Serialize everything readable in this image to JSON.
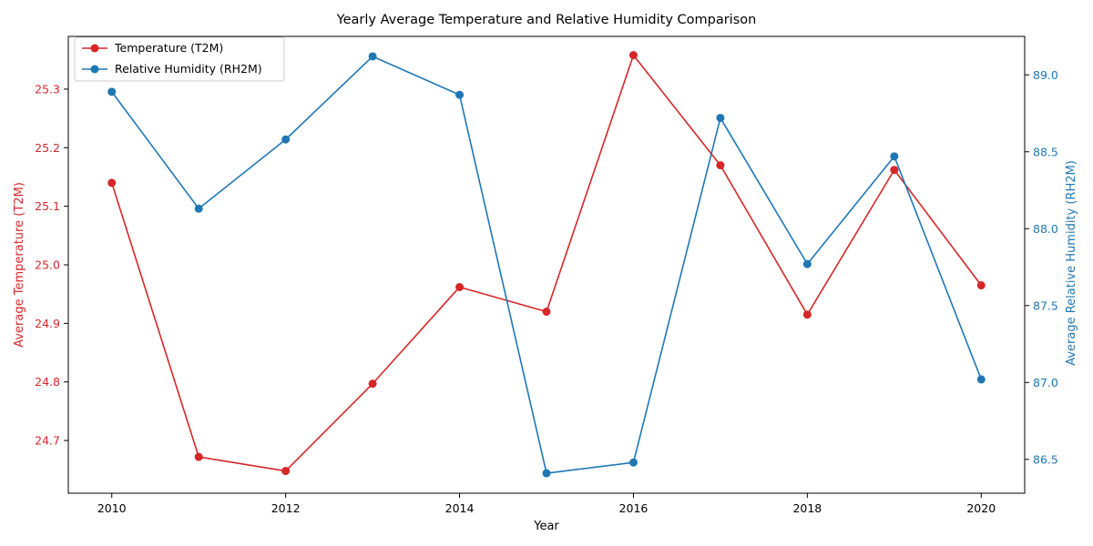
{
  "chart_data": {
    "type": "line",
    "title": "Yearly Average Temperature and Relative Humidity Comparison",
    "xlabel": "Year",
    "ylabel_left": "Average Temperature (T2M)",
    "ylabel_right": "Average Relative Humidity (RH2M)",
    "x": [
      2010,
      2011,
      2012,
      2013,
      2014,
      2015,
      2016,
      2017,
      2018,
      2019,
      2020
    ],
    "xlim": [
      2009.5,
      2020.5
    ],
    "x_ticks": [
      2010,
      2012,
      2014,
      2016,
      2018,
      2020
    ],
    "ylim_left": [
      24.61,
      25.39
    ],
    "y_ticks_left": [
      "24.7",
      "24.8",
      "24.9",
      "25.0",
      "25.1",
      "25.2",
      "25.3"
    ],
    "ylim_right": [
      86.28,
      89.25
    ],
    "y_ticks_right": [
      "86.5",
      "87.0",
      "87.5",
      "88.0",
      "88.5",
      "89.0"
    ],
    "grid": false,
    "legend_position": "top-left",
    "series": [
      {
        "name": "Temperature (T2M)",
        "axis": "left",
        "color": "#d62728",
        "values": [
          25.14,
          24.672,
          24.648,
          24.797,
          24.962,
          24.92,
          25.358,
          25.17,
          24.915,
          25.162,
          24.965
        ]
      },
      {
        "name": "Relative Humidity (RH2M)",
        "axis": "right",
        "color": "#1f77b4",
        "values": [
          88.89,
          88.13,
          88.58,
          89.12,
          88.87,
          86.41,
          86.48,
          88.72,
          87.77,
          88.47,
          87.02
        ]
      }
    ]
  }
}
